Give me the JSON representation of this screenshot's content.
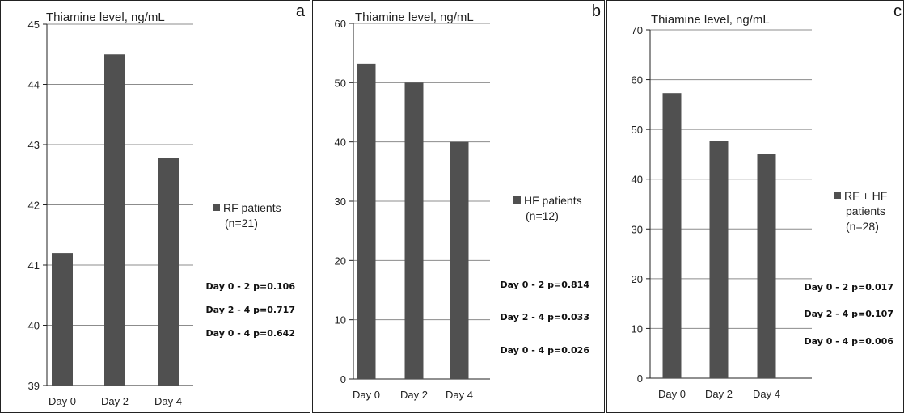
{
  "colors": {
    "bar": "#505050",
    "grid": "#8c8c8c",
    "axis": "#222222"
  },
  "chart_data": [
    {
      "type": "bar",
      "panel_label": "a",
      "title": "Thiamine level, ng/mL",
      "categories": [
        "Day 0",
        "Day 2",
        "Day 4"
      ],
      "series": [
        {
          "name": "RF patients (n=21)",
          "legend_lines": [
            "RF patients",
            "(n=21)"
          ],
          "values": [
            41.2,
            44.5,
            42.78
          ]
        }
      ],
      "ylim": [
        39,
        45
      ],
      "yticks": [
        "39",
        "40",
        "41",
        "42",
        "43",
        "44",
        "45"
      ],
      "grid": true,
      "legend": "right",
      "annotations": [
        "Day 0 - 2 p=0.106",
        "Day 2 - 4 p=0.717",
        "Day 0 - 4 p=0.642"
      ]
    },
    {
      "type": "bar",
      "panel_label": "b",
      "title": "Thiamine level, ng/mL",
      "categories": [
        "Day 0",
        "Day 2",
        "Day 4"
      ],
      "series": [
        {
          "name": "HF patients (n=12)",
          "legend_lines": [
            "HF patients",
            "(n=12)"
          ],
          "values": [
            53.2,
            50.0,
            40.0
          ]
        }
      ],
      "ylim": [
        0,
        60
      ],
      "yticks": [
        "0",
        "10",
        "20",
        "30",
        "40",
        "50",
        "60"
      ],
      "grid": true,
      "legend": "right",
      "annotations": [
        "Day 0 - 2 p=0.814",
        "Day 2 - 4 p=0.033",
        "Day 0 - 4 p=0.026"
      ]
    },
    {
      "type": "bar",
      "panel_label": "c",
      "title": "Thiamine level, ng/mL",
      "categories": [
        "Day 0",
        "Day 2",
        "Day 4"
      ],
      "series": [
        {
          "name": "RF + HF patients (n=28)",
          "legend_lines": [
            "RF + HF",
            "patients",
            "(n=28)"
          ],
          "values": [
            57.3,
            47.6,
            45.0
          ]
        }
      ],
      "ylim": [
        0,
        70
      ],
      "yticks": [
        "0",
        "10",
        "20",
        "30",
        "40",
        "50",
        "60",
        "70"
      ],
      "grid": true,
      "legend": "right",
      "annotations": [
        "Day 0 - 2 p=0.017",
        "Day 2 - 4 p=0.107",
        "Day 0 - 4 p=0.006"
      ]
    }
  ]
}
